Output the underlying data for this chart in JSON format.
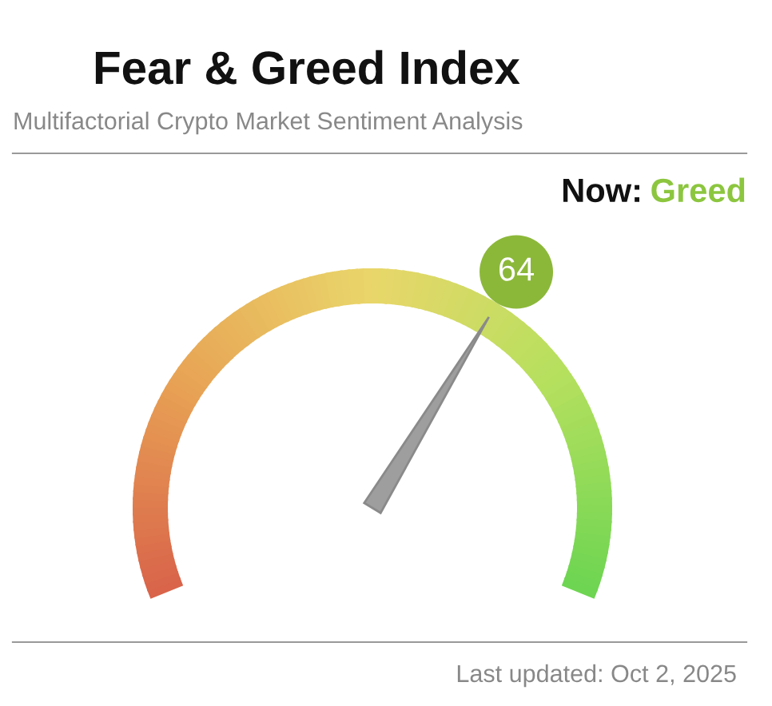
{
  "chart_data": {
    "type": "other",
    "title": "Fear & Greed Index",
    "subtitle": "Multifactorial Crypto Market Sentiment Analysis",
    "values": [
      64
    ],
    "data_labels": true,
    "color": "#8cb83a",
    "annotations": [
      "Now:",
      "Greed",
      "Last updated: Oct 2, 2025"
    ]
  }
}
